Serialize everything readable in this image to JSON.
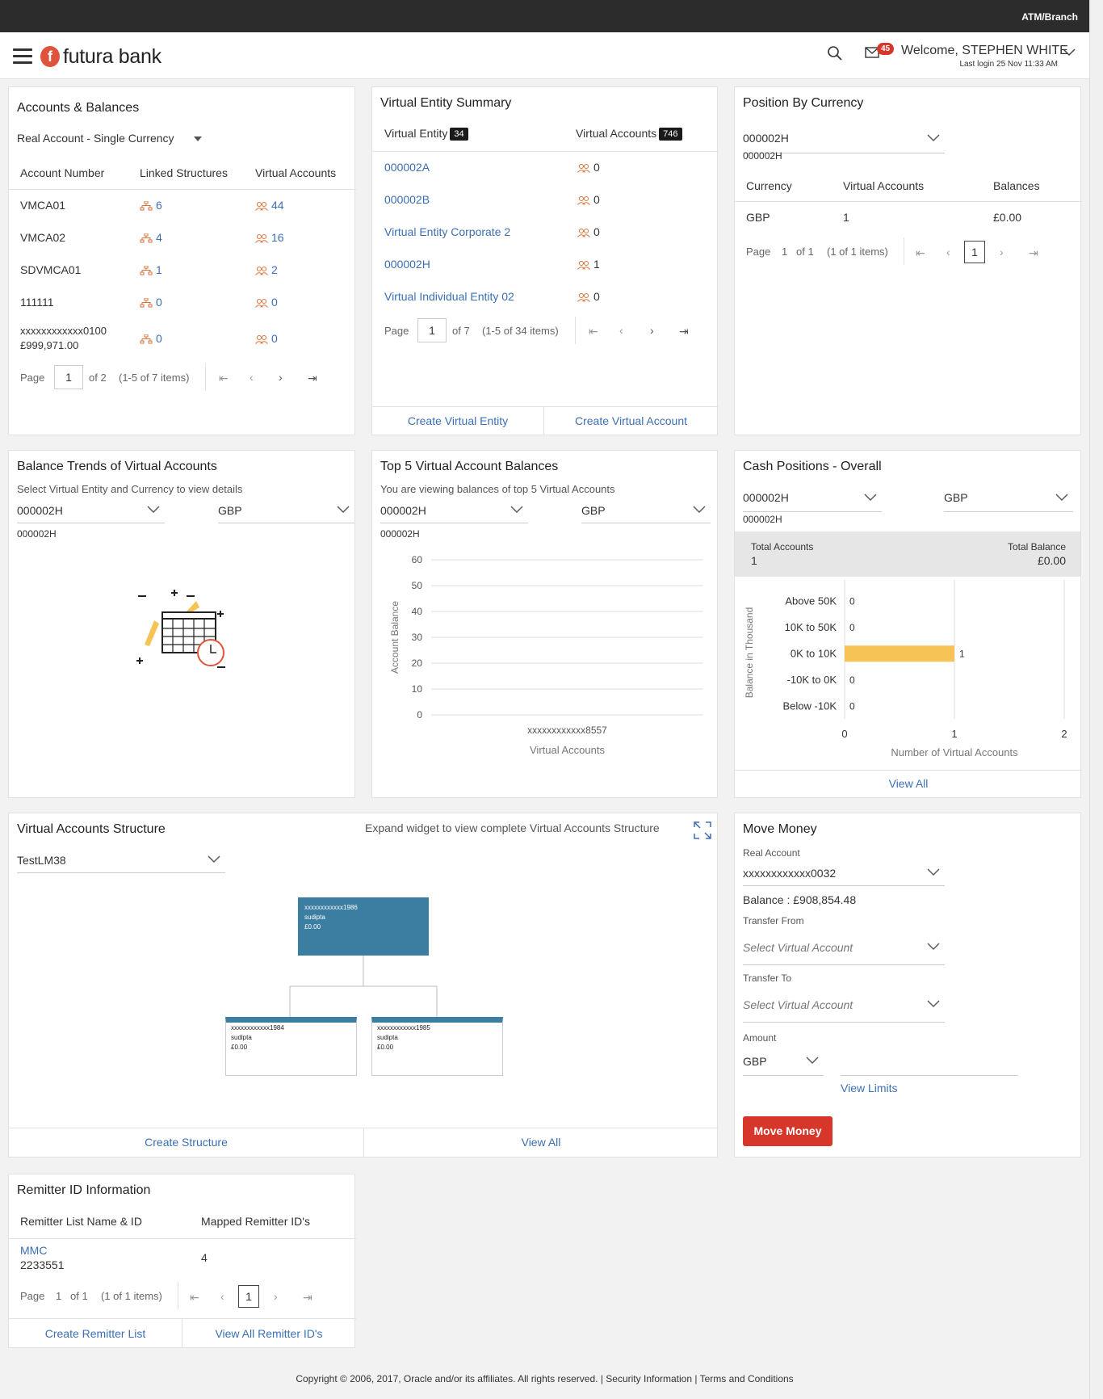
{
  "topbar": {
    "atm_label": "ATM/Branch"
  },
  "header": {
    "brand": "futura bank",
    "mail_count": "45",
    "welcome": "Welcome, STEPHEN WHITE",
    "last_login": "Last login 25 Nov 11:33 AM"
  },
  "accounts": {
    "title": "Accounts & Balances",
    "filter": "Real Account - Single Currency",
    "headers": [
      "Account Number",
      "Linked Structures",
      "Virtual Accounts"
    ],
    "rows": [
      {
        "account": "VMCA01",
        "balance": "",
        "linked": "6",
        "virtual": "44"
      },
      {
        "account": "VMCA02",
        "balance": "",
        "linked": "4",
        "virtual": "16"
      },
      {
        "account": "SDVMCA01",
        "balance": "",
        "linked": "1",
        "virtual": "2"
      },
      {
        "account": "111111",
        "balance": "",
        "linked": "0",
        "virtual": "0"
      },
      {
        "account": "xxxxxxxxxxxx0100",
        "balance": "£999,971.00",
        "linked": "0",
        "virtual": "0"
      }
    ],
    "pager": {
      "page": "Page",
      "current": "1",
      "of": "of 2",
      "items": "(1-5 of 7 items)"
    }
  },
  "ves": {
    "title": "Virtual Entity Summary",
    "col1": "Virtual Entity",
    "col1_count": "34",
    "col2": "Virtual Accounts",
    "col2_count": "746",
    "rows": [
      {
        "name": "000002A",
        "count": "0"
      },
      {
        "name": "000002B",
        "count": "0"
      },
      {
        "name": "Virtual Entity Corporate 2",
        "count": "0"
      },
      {
        "name": "000002H",
        "count": "1"
      },
      {
        "name": "Virtual Individual Entity 02",
        "count": "0"
      }
    ],
    "pager": {
      "page": "Page",
      "current": "1",
      "of": "of 7",
      "items": "(1-5 of 34 items)"
    },
    "actions": [
      "Create Virtual Entity",
      "Create Virtual Account"
    ]
  },
  "pbc": {
    "title": "Position By Currency",
    "select": "000002H",
    "select_caption": "000002H",
    "headers": [
      "Currency",
      "Virtual Accounts",
      "Balances"
    ],
    "row": {
      "currency": "GBP",
      "va": "1",
      "balance": "£0.00"
    },
    "pager": {
      "page": "Page",
      "current": "1",
      "of": "of 1",
      "items": "(1 of 1 items)",
      "box": "1"
    }
  },
  "btva": {
    "title": "Balance Trends of Virtual Accounts",
    "subtitle": "Select Virtual Entity and Currency to view details",
    "entity": "000002H",
    "currency": "GBP",
    "caption": "000002H"
  },
  "top5": {
    "title": "Top 5 Virtual Account Balances",
    "subtitle": "You are viewing balances of top 5 Virtual Accounts",
    "entity": "000002H",
    "currency": "GBP",
    "caption": "000002H"
  },
  "cash": {
    "title": "Cash Positions - Overall",
    "entity": "000002H",
    "currency": "GBP",
    "caption": "000002H",
    "total_accounts_label": "Total Accounts",
    "total_accounts": "1",
    "total_balance_label": "Total Balance",
    "total_balance": "£0.00",
    "view_all": "View All"
  },
  "vas": {
    "title": "Virtual Accounts Structure",
    "expand_hint": "Expand widget to view complete Virtual Accounts Structure",
    "select": "TestLM38",
    "root": {
      "acct": "xxxxxxxxxxxx1986",
      "name": "sudipta",
      "bal": "£0.00"
    },
    "children": [
      {
        "acct": "xxxxxxxxxxxx1984",
        "name": "sudipta",
        "bal": "£0.00"
      },
      {
        "acct": "xxxxxxxxxxxx1985",
        "name": "sudipta",
        "bal": "£0.00"
      }
    ],
    "actions": [
      "Create Structure",
      "View All"
    ]
  },
  "move": {
    "title": "Move Money",
    "real_label": "Real Account",
    "real_value": "xxxxxxxxxxxx0032",
    "balance": "Balance : £908,854.48",
    "from_label": "Transfer From",
    "from_placeholder": "Select Virtual Account",
    "to_label": "Transfer To",
    "to_placeholder": "Select Virtual Account",
    "amount_label": "Amount",
    "currency": "GBP",
    "view_limits": "View Limits",
    "button": "Move Money"
  },
  "remitter": {
    "title": "Remitter ID Information",
    "headers": [
      "Remitter List Name & ID",
      "Mapped Remitter ID's"
    ],
    "row": {
      "name": "MMC",
      "id": "2233551",
      "count": "4"
    },
    "pager": {
      "page": "Page",
      "current": "1",
      "of": "of 1",
      "items": "(1 of 1 items)",
      "box": "1"
    },
    "actions": [
      "Create Remitter List",
      "View All Remitter ID's"
    ]
  },
  "footer": {
    "copyright": "Copyright © 2006, 2017, Oracle and/or its affiliates. All rights reserved.",
    "sep": "|",
    "security": "Security Information",
    "terms": "Terms and Conditions"
  },
  "chart_data": [
    {
      "type": "bar",
      "categories": [
        "xxxxxxxxxxxx8557"
      ],
      "values": [
        0
      ],
      "xlabel": "Virtual Accounts",
      "ylabel": "Account Balance",
      "yticks": [
        0,
        10,
        20,
        30,
        40,
        50,
        60
      ],
      "ylim": [
        0,
        60
      ]
    },
    {
      "type": "bar",
      "orientation": "horizontal",
      "categories": [
        "Above 50K",
        "10K to 50K",
        "0K to 10K",
        "-10K to 0K",
        "Below -10K"
      ],
      "values": [
        0,
        0,
        1,
        0,
        0
      ],
      "xlabel": "Number of Virtual Accounts",
      "ylabel": "Balance in Thousand",
      "xticks": [
        0,
        1,
        2
      ],
      "xlim": [
        0,
        2
      ],
      "bar_color": "#f5c356"
    }
  ]
}
